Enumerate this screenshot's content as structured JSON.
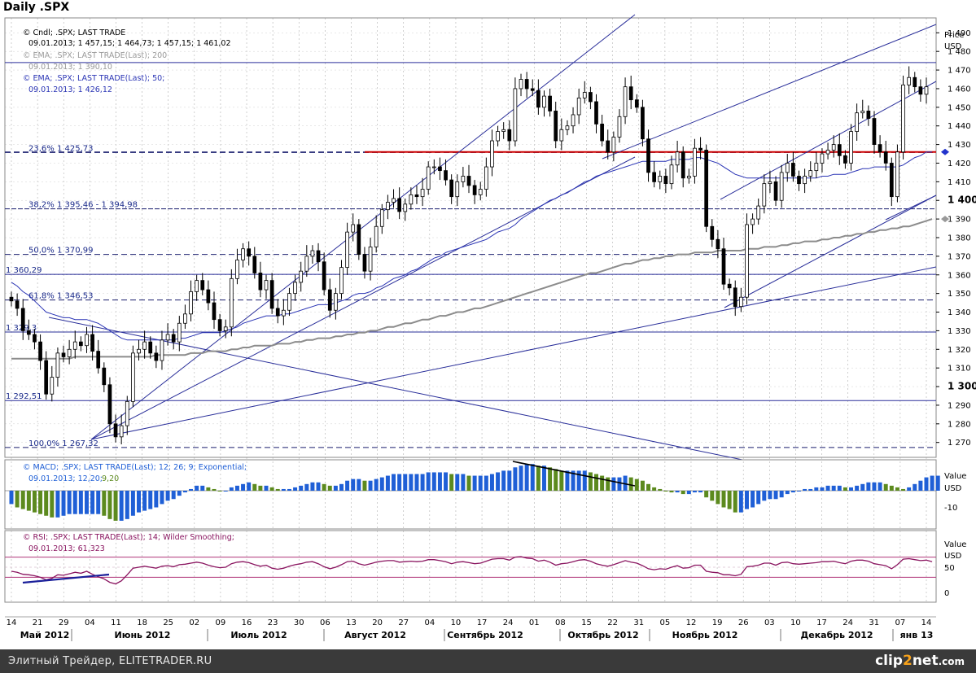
{
  "title": "Daily .SPX",
  "colors": {
    "up": "#000000",
    "down": "#000000",
    "ema50": "#2b35b5",
    "ema200": "#8c8c8c",
    "channel": "#2a2f9a",
    "fib_dash": "#1a1f6e",
    "resistance": "#cc0000",
    "macd_pos_blue": "#1f5fd6",
    "macd_pos_green": "#5c8a1e",
    "rsi": "#8a1560",
    "rsi_band": "#b0357a",
    "grid": "#b0b0b0"
  },
  "legend": {
    "price": {
      "label": "Cndl; .SPX; LAST TRADE",
      "values": "09.01.2013; 1 457,15; 1 464,73; 1 457,15; 1 461,02"
    },
    "ema200": {
      "label": "EMA; .SPX; LAST TRADE(Last); 200",
      "values": "09.01.2013; 1 390,10"
    },
    "ema50": {
      "label": "EMA; .SPX; LAST TRADE(Last); 50;",
      "values": "09.01.2013; 1 426,12"
    },
    "macd": {
      "label": "MACD; .SPX; LAST TRADE(Last); 12; 26; 9; Exponential;",
      "values_a": "09.01.2013; 12,20;",
      "values_b": "9,20"
    },
    "rsi": {
      "label": "RSI; .SPX; LAST TRADE(Last); 14; Wilder Smoothing;",
      "values": "09.01.2013; 61,323"
    }
  },
  "axis": {
    "price_header": "Price",
    "price_unit": "USD",
    "macd_header": "Value",
    "macd_unit": "USD",
    "rsi_header": "Value",
    "rsi_unit": "USD",
    "macd_ticks": [
      "-10"
    ],
    "rsi_ticks": [
      "50",
      "0"
    ],
    "day_ticks": [
      "14",
      "21",
      "29",
      "04",
      "11",
      "18",
      "25",
      "02",
      "09",
      "16",
      "23",
      "30",
      "06",
      "13",
      "20",
      "27",
      "04",
      "10",
      "17",
      "24",
      "01",
      "08",
      "15",
      "22",
      "31",
      "05",
      "12",
      "19",
      "26",
      "03",
      "10",
      "17",
      "24",
      "31",
      "07",
      "14"
    ],
    "month_labels": [
      "Май 2012",
      "Июнь 2012",
      "Июль 2012",
      "Август 2012",
      "Сентябрь 2012",
      "Октябрь 2012",
      "Ноябрь 2012",
      "Декабрь 2012",
      "янв 13"
    ]
  },
  "fib_labels": [
    {
      "text": "23,6%  1 425,73"
    },
    {
      "text": "38,2%  1 395,46 - 1 394,98"
    },
    {
      "text": "50,0%  1 370,99"
    },
    {
      "text": "61,8%  1 346,53"
    },
    {
      "text": "100,0% 1 267,32"
    }
  ],
  "level_labels": [
    {
      "text": "1 360,29"
    },
    {
      "text": "1 329,3"
    },
    {
      "text": "1 292,51"
    }
  ],
  "chart_data": {
    "type": "candlestick",
    "symbol": ".SPX",
    "ylim": [
      1262,
      1498
    ],
    "yticks": [
      1270,
      1280,
      1290,
      1300,
      1310,
      1320,
      1330,
      1340,
      1350,
      1360,
      1370,
      1380,
      1390,
      1400,
      1410,
      1420,
      1430,
      1440,
      1450,
      1460,
      1470,
      1480,
      1490
    ],
    "yticks_bold": [
      1300,
      1400
    ],
    "highlight_ticks": [
      1426,
      1390
    ],
    "fib_levels": [
      1425.73,
      1395.46,
      1370.99,
      1346.53,
      1267.32
    ],
    "horizontal_levels": [
      1360.29,
      1329.3,
      1292.51,
      1474
    ],
    "resistance_level": 1426,
    "closes": [
      1346,
      1342,
      1330,
      1328,
      1324,
      1314,
      1296,
      1305,
      1318,
      1316,
      1320,
      1324,
      1322,
      1328,
      1319,
      1310,
      1301,
      1280,
      1273,
      1279,
      1292,
      1318,
      1320,
      1324,
      1318,
      1314,
      1325,
      1328,
      1324,
      1334,
      1339,
      1351,
      1357,
      1352,
      1345,
      1336,
      1330,
      1332,
      1358,
      1368,
      1374,
      1370,
      1361,
      1352,
      1357,
      1342,
      1338,
      1341,
      1350,
      1356,
      1362,
      1370,
      1373,
      1367,
      1352,
      1341,
      1350,
      1364,
      1383,
      1387,
      1371,
      1362,
      1375,
      1386,
      1395,
      1399,
      1401,
      1394,
      1398,
      1403,
      1402,
      1406,
      1418,
      1418,
      1416,
      1411,
      1402,
      1410,
      1413,
      1408,
      1403,
      1406,
      1418,
      1432,
      1437,
      1438,
      1432,
      1460,
      1465,
      1460,
      1459,
      1450,
      1456,
      1448,
      1432,
      1438,
      1440,
      1446,
      1455,
      1458,
      1453,
      1441,
      1432,
      1426,
      1434,
      1445,
      1461,
      1454,
      1450,
      1433,
      1415,
      1410,
      1413,
      1409,
      1419,
      1426,
      1412,
      1413,
      1428,
      1427,
      1386,
      1379,
      1374,
      1355,
      1353,
      1343,
      1348,
      1387,
      1390,
      1397,
      1409,
      1410,
      1400,
      1415,
      1420,
      1413,
      1409,
      1413,
      1416,
      1420,
      1425,
      1427,
      1430,
      1424,
      1420,
      1437,
      1447,
      1448,
      1444,
      1430,
      1426,
      1420,
      1402,
      1426,
      1462,
      1466,
      1461,
      1457,
      1461
    ],
    "ema50": [
      1356,
      1354,
      1351,
      1349,
      1346,
      1343,
      1340,
      1339,
      1338,
      1337,
      1337,
      1336,
      1336,
      1336,
      1335,
      1334,
      1332,
      1330,
      1328,
      1326,
      1325,
      1325,
      1325,
      1325,
      1325,
      1325,
      1325,
      1325,
      1325,
      1326,
      1326,
      1327,
      1328,
      1329,
      1329,
      1329,
      1329,
      1330,
      1331,
      1332,
      1334,
      1335,
      1336,
      1337,
      1338,
      1338,
      1338,
      1339,
      1339,
      1340,
      1341,
      1342,
      1343,
      1344,
      1344,
      1344,
      1345,
      1346,
      1347,
      1349,
      1350,
      1350,
      1351,
      1353,
      1354,
      1356,
      1358,
      1359,
      1360,
      1362,
      1363,
      1365,
      1367,
      1369,
      1370,
      1372,
      1373,
      1374,
      1375,
      1376,
      1377,
      1378,
      1379,
      1381,
      1383,
      1384,
      1385,
      1387,
      1390,
      1392,
      1394,
      1396,
      1398,
      1400,
      1401,
      1403,
      1404,
      1406,
      1408,
      1410,
      1411,
      1413,
      1414,
      1415,
      1416,
      1417,
      1418,
      1419,
      1420,
      1421,
      1421,
      1421,
      1421,
      1421,
      1422,
      1422,
      1422,
      1422,
      1423,
      1423,
      1422,
      1421,
      1420,
      1418,
      1416,
      1414,
      1413,
      1412,
      1412,
      1412,
      1412,
      1412,
      1412,
      1412,
      1412,
      1412,
      1412,
      1412,
      1412,
      1412,
      1413,
      1413,
      1414,
      1414,
      1414,
      1415,
      1416,
      1417,
      1417,
      1418,
      1418,
      1418,
      1418,
      1418,
      1419,
      1421,
      1423,
      1424,
      1426,
      1426
    ],
    "ema200": [
      1315,
      1315,
      1315,
      1315,
      1315,
      1315,
      1315,
      1315,
      1315,
      1315,
      1315,
      1316,
      1316,
      1316,
      1316,
      1316,
      1316,
      1316,
      1316,
      1316,
      1316,
      1316,
      1316,
      1316,
      1316,
      1317,
      1317,
      1317,
      1317,
      1317,
      1317,
      1318,
      1318,
      1318,
      1319,
      1319,
      1319,
      1319,
      1320,
      1320,
      1321,
      1321,
      1322,
      1322,
      1322,
      1322,
      1323,
      1323,
      1323,
      1324,
      1324,
      1325,
      1325,
      1326,
      1326,
      1326,
      1327,
      1327,
      1328,
      1328,
      1329,
      1329,
      1330,
      1330,
      1331,
      1332,
      1332,
      1333,
      1334,
      1334,
      1335,
      1336,
      1336,
      1337,
      1338,
      1338,
      1339,
      1340,
      1340,
      1341,
      1342,
      1342,
      1343,
      1344,
      1345,
      1346,
      1347,
      1348,
      1349,
      1350,
      1351,
      1352,
      1353,
      1354,
      1355,
      1356,
      1357,
      1358,
      1359,
      1360,
      1361,
      1361,
      1362,
      1363,
      1364,
      1365,
      1366,
      1366,
      1367,
      1368,
      1368,
      1369,
      1369,
      1370,
      1370,
      1371,
      1371,
      1371,
      1372,
      1372,
      1372,
      1372,
      1373,
      1373,
      1373,
      1373,
      1373,
      1374,
      1374,
      1374,
      1375,
      1375,
      1375,
      1376,
      1376,
      1377,
      1377,
      1378,
      1378,
      1378,
      1379,
      1379,
      1380,
      1380,
      1381,
      1381,
      1382,
      1382,
      1383,
      1383,
      1384,
      1384,
      1385,
      1385,
      1386,
      1386,
      1387,
      1388,
      1389,
      1390
    ],
    "macd": [
      -8,
      -10,
      -11,
      -12,
      -13,
      -14,
      -15,
      -16,
      -16,
      -15,
      -14,
      -14,
      -14,
      -14,
      -14,
      -14,
      -15,
      -17,
      -18,
      -18,
      -17,
      -15,
      -13,
      -12,
      -11,
      -10,
      -8,
      -6,
      -5,
      -3,
      -1,
      1,
      3,
      3,
      2,
      1,
      0,
      0,
      2,
      3,
      4,
      5,
      4,
      3,
      3,
      2,
      1,
      1,
      1,
      2,
      3,
      4,
      5,
      5,
      4,
      3,
      3,
      4,
      6,
      7,
      7,
      6,
      6,
      7,
      8,
      9,
      10,
      10,
      10,
      10,
      10,
      10,
      11,
      11,
      11,
      11,
      10,
      10,
      10,
      9,
      9,
      9,
      9,
      10,
      11,
      12,
      12,
      14,
      15,
      16,
      16,
      15,
      15,
      14,
      13,
      12,
      12,
      12,
      12,
      12,
      11,
      10,
      9,
      8,
      8,
      8,
      9,
      8,
      7,
      6,
      4,
      2,
      1,
      0,
      -1,
      -1,
      -2,
      -2,
      -1,
      -1,
      -4,
      -6,
      -8,
      -10,
      -11,
      -13,
      -13,
      -11,
      -10,
      -8,
      -6,
      -5,
      -5,
      -4,
      -2,
      -1,
      0,
      1,
      1,
      2,
      2,
      3,
      3,
      3,
      2,
      2,
      3,
      4,
      5,
      5,
      5,
      4,
      3,
      2,
      1,
      2,
      4,
      6,
      8,
      9,
      9
    ],
    "rsi": [
      42,
      40,
      36,
      35,
      33,
      30,
      25,
      28,
      35,
      34,
      37,
      40,
      38,
      42,
      36,
      31,
      27,
      20,
      17,
      23,
      35,
      48,
      50,
      52,
      50,
      48,
      52,
      53,
      51,
      55,
      56,
      58,
      60,
      58,
      54,
      51,
      49,
      50,
      57,
      60,
      61,
      59,
      55,
      52,
      54,
      48,
      46,
      48,
      52,
      55,
      57,
      60,
      61,
      57,
      51,
      47,
      50,
      55,
      61,
      62,
      57,
      54,
      57,
      60,
      62,
      63,
      63,
      60,
      61,
      62,
      61,
      62,
      65,
      65,
      63,
      61,
      57,
      60,
      61,
      59,
      57,
      58,
      62,
      66,
      67,
      67,
      64,
      70,
      71,
      68,
      67,
      62,
      64,
      60,
      54,
      57,
      58,
      61,
      64,
      65,
      62,
      57,
      54,
      52,
      55,
      59,
      63,
      60,
      58,
      53,
      47,
      45,
      47,
      46,
      50,
      53,
      48,
      49,
      54,
      54,
      42,
      40,
      39,
      35,
      35,
      33,
      36,
      51,
      52,
      54,
      58,
      58,
      54,
      59,
      60,
      57,
      56,
      57,
      58,
      59,
      61,
      61,
      62,
      59,
      57,
      62,
      64,
      64,
      62,
      57,
      55,
      53,
      47,
      55,
      66,
      67,
      65,
      63,
      64,
      61
    ]
  }
}
